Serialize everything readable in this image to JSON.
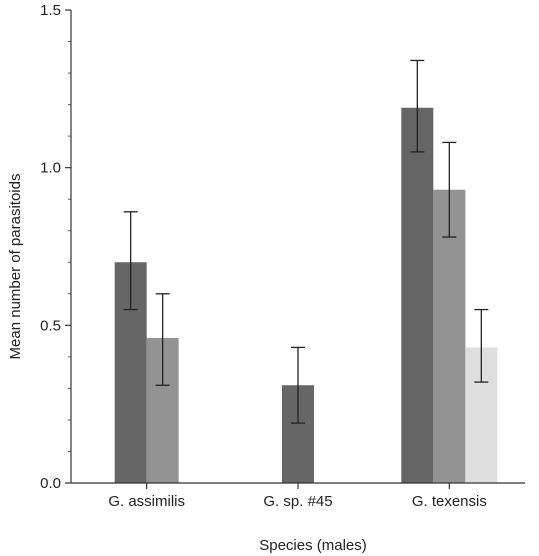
{
  "chart_data": {
    "type": "bar",
    "xlabel": "Species (males)",
    "ylabel": "Mean number of parasitoids",
    "ylim": [
      0,
      1.5
    ],
    "yticks": [
      {
        "value": 0,
        "label": "0.0"
      },
      {
        "value": 0.5,
        "label": "0.5"
      },
      {
        "value": 1.0,
        "label": "1.0"
      },
      {
        "value": 1.5,
        "label": "1.5"
      }
    ],
    "categories": [
      "G. assimilis",
      "G. sp. #45",
      "G. texensis"
    ],
    "series": [
      {
        "color": "#666666",
        "values": [
          0.7,
          0.31,
          1.19
        ],
        "err_low": [
          0.55,
          0.19,
          1.05
        ],
        "err_high": [
          0.86,
          0.43,
          1.34
        ]
      },
      {
        "color": "#939393",
        "values": [
          0.46,
          null,
          0.93
        ],
        "err_low": [
          0.31,
          null,
          0.78
        ],
        "err_high": [
          0.6,
          null,
          1.08
        ]
      },
      {
        "color": "#dedede",
        "values": [
          null,
          null,
          0.43
        ],
        "err_low": [
          null,
          null,
          0.32
        ],
        "err_high": [
          null,
          null,
          0.55
        ]
      }
    ],
    "grid": false,
    "legend": "none"
  }
}
